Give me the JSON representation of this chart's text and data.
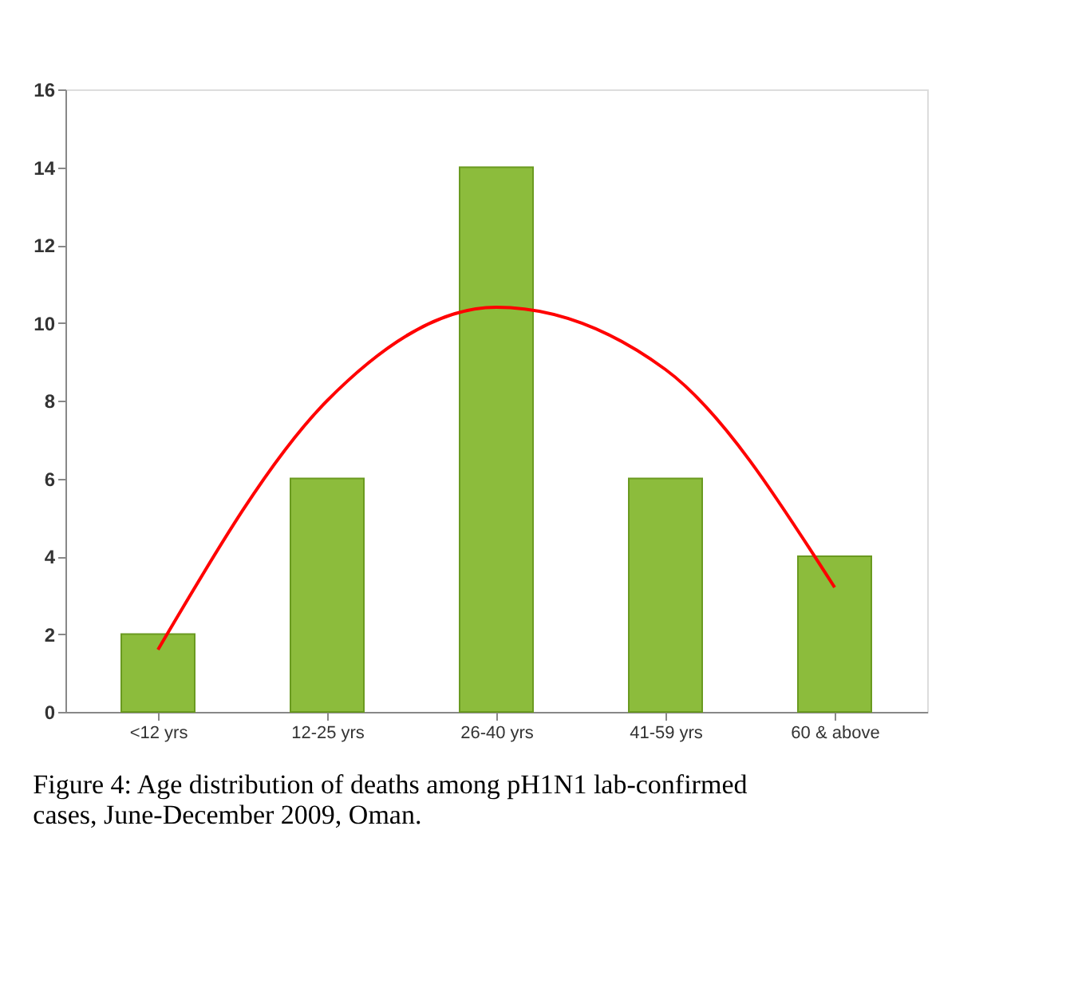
{
  "chart_data": {
    "type": "bar",
    "categories": [
      "<12 yrs",
      "12-25 yrs",
      "26-40 yrs",
      "41-59 yrs",
      "60 & above"
    ],
    "series": [
      {
        "color": "#8cbc3c",
        "values": [
          2,
          6,
          14,
          6,
          4
        ]
      },
      {
        "type": "line",
        "color": "#ff0000",
        "x": [
          "<12 yrs",
          "12-25 yrs",
          "26-40 yrs",
          "41-59 yrs",
          "60 & above"
        ],
        "values": [
          1.6,
          8.0,
          10.4,
          8.8,
          3.2
        ]
      }
    ],
    "ylim": [
      0,
      16
    ],
    "yticks": [
      0,
      2,
      4,
      6,
      8,
      10,
      12,
      14,
      16
    ],
    "grid": false,
    "annotations": [
      "Figure 4: Age distribution of deaths among pH1N1 lab-confirmed cases, June-December 2009, Oman."
    ]
  }
}
